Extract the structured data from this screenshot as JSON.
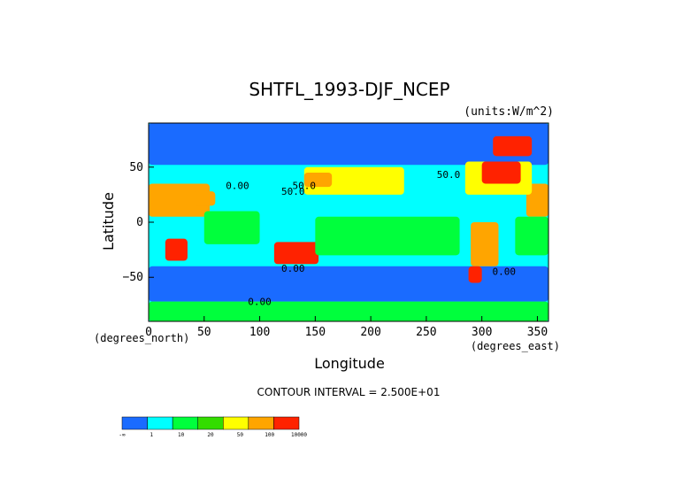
{
  "chart_data": {
    "type": "heatmap",
    "title": "SHTFL_1993-DJF_NCEP",
    "units": "(units:W/m^2)",
    "xlabel": "Longitude",
    "ylabel": "Latitude",
    "x_unit_label": "(degrees_east)",
    "y_unit_label": "(degrees_north)",
    "xlim": [
      0,
      360
    ],
    "ylim": [
      -90,
      90
    ],
    "x_ticks": [
      "0",
      "50",
      "100",
      "150",
      "200",
      "250",
      "300",
      "350"
    ],
    "y_ticks": [
      "50",
      "0",
      "−50"
    ],
    "contour_interval_text": "CONTOUR INTERVAL = 2.500E+01",
    "contour_labels": [
      "0.00",
      "50.0",
      "50.0",
      "0.00",
      "0.00",
      "0.00",
      "50.0"
    ],
    "colorbar": {
      "colors": [
        "#1a6bff",
        "#00ffff",
        "#00ff3c",
        "#33dd00",
        "#ffff00",
        "#ffa500",
        "#ff2200"
      ],
      "tick_labels": [
        "-∞",
        "1",
        "10",
        "20",
        "50",
        "100",
        "10000"
      ]
    },
    "regions": [
      {
        "name": "north-polar-ocean",
        "lon": [
          0,
          360
        ],
        "lat": [
          52,
          90
        ],
        "color": "#1a6bff"
      },
      {
        "name": "tropics-band",
        "lon": [
          0,
          360
        ],
        "lat": [
          -35,
          22
        ],
        "color": "#00ffff"
      },
      {
        "name": "southern-ocean",
        "lon": [
          0,
          360
        ],
        "lat": [
          -72,
          -40
        ],
        "color": "#1a6bff"
      },
      {
        "name": "antarctica",
        "lon": [
          0,
          360
        ],
        "lat": [
          -90,
          -72
        ],
        "color": "#00ff3c"
      },
      {
        "name": "sahara",
        "lon": [
          340,
          360
        ],
        "lat": [
          5,
          35
        ],
        "color": "#ffa500"
      },
      {
        "name": "sahara-east",
        "lon": [
          0,
          55
        ],
        "lat": [
          5,
          35
        ],
        "color": "#ffa500"
      },
      {
        "name": "south-africa",
        "lon": [
          15,
          35
        ],
        "lat": [
          -35,
          -15
        ],
        "color": "#ff2200"
      },
      {
        "name": "australia",
        "lon": [
          113,
          153
        ],
        "lat": [
          -38,
          -18
        ],
        "color": "#ff2200"
      },
      {
        "name": "south-america",
        "lon": [
          290,
          315
        ],
        "lat": [
          -40,
          0
        ],
        "color": "#ffa500"
      },
      {
        "name": "north-pacific-warm",
        "lon": [
          140,
          230
        ],
        "lat": [
          25,
          50
        ],
        "color": "#ffff00"
      },
      {
        "name": "north-atlantic-warm",
        "lon": [
          285,
          345
        ],
        "lat": [
          25,
          55
        ],
        "color": "#ffff00"
      },
      {
        "name": "north-atlantic-hot",
        "lon": [
          300,
          335
        ],
        "lat": [
          35,
          55
        ],
        "color": "#ff2200"
      },
      {
        "name": "kuroshio-hot",
        "lon": [
          140,
          165
        ],
        "lat": [
          32,
          45
        ],
        "color": "#ffa500"
      },
      {
        "name": "greenland-hot",
        "lon": [
          310,
          345
        ],
        "lat": [
          60,
          78
        ],
        "color": "#ff2200"
      },
      {
        "name": "arabia",
        "lon": [
          40,
          60
        ],
        "lat": [
          15,
          28
        ],
        "color": "#ffa500"
      },
      {
        "name": "indian-ocean-green",
        "lon": [
          50,
          100
        ],
        "lat": [
          -20,
          10
        ],
        "color": "#00ff3c"
      },
      {
        "name": "pacific-green",
        "lon": [
          150,
          280
        ],
        "lat": [
          -30,
          5
        ],
        "color": "#00ff3c"
      },
      {
        "name": "atlantic-green",
        "lon": [
          330,
          360
        ],
        "lat": [
          -30,
          5
        ],
        "color": "#00ff3c"
      },
      {
        "name": "patagonia",
        "lon": [
          288,
          300
        ],
        "lat": [
          -55,
          -40
        ],
        "color": "#ff2200"
      }
    ]
  }
}
